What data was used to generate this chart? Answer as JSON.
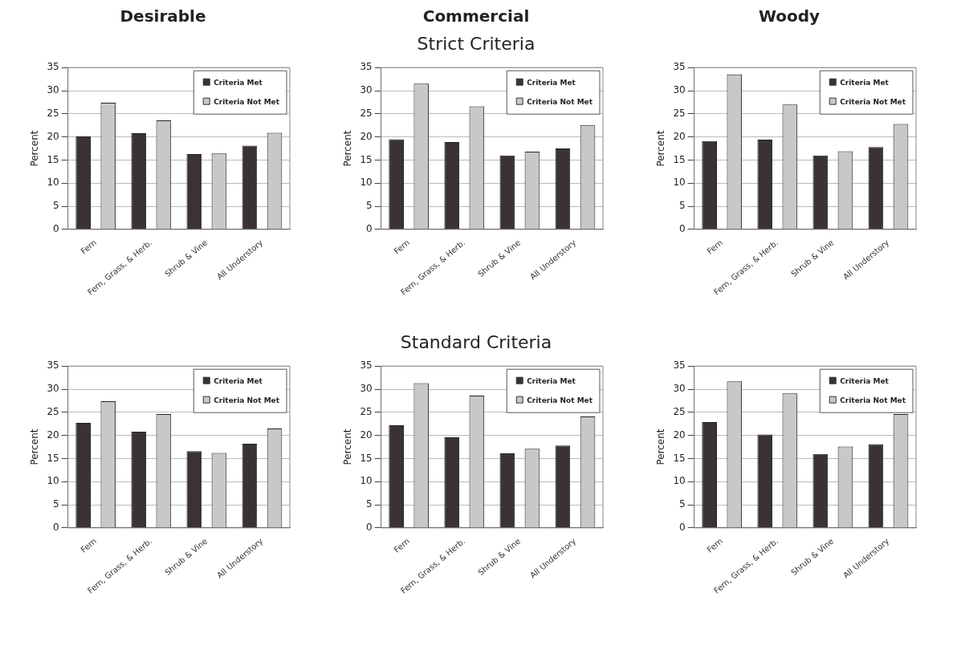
{
  "chart_data": [
    {
      "type": "bar",
      "title": "Desirable",
      "ylabel": "Percent",
      "categories": [
        "Fern",
        "Fern, Grass, & Herb.",
        "Shrub & Vine",
        "All Understory"
      ],
      "ylim": [
        0,
        35
      ],
      "yticks": [
        0,
        5,
        10,
        15,
        20,
        25,
        30,
        35
      ],
      "grid": "y",
      "legend": "top right",
      "series": [
        {
          "name": "Criteria Met",
          "color": "#3a3236",
          "values": [
            20.1,
            20.8,
            16.3,
            18.1
          ]
        },
        {
          "name": "Criteria Not Met",
          "color": "#c8c8c8",
          "values": [
            27.4,
            23.6,
            16.4,
            20.9
          ]
        }
      ]
    },
    {
      "type": "bar",
      "title": "Commercial",
      "subtitle": "Strict Criteria",
      "ylabel": "Percent",
      "categories": [
        "Fern",
        "Fern, Grass, & Herb.",
        "Shrub & Vine",
        "All Understory"
      ],
      "ylim": [
        0,
        35
      ],
      "yticks": [
        0,
        5,
        10,
        15,
        20,
        25,
        30,
        35
      ],
      "grid": "y",
      "legend": "top right",
      "series": [
        {
          "name": "Criteria Met",
          "color": "#3a3236",
          "values": [
            19.5,
            18.9,
            16.0,
            17.5
          ]
        },
        {
          "name": "Criteria Not Met",
          "color": "#c8c8c8",
          "values": [
            31.5,
            26.6,
            16.8,
            22.6
          ]
        }
      ]
    },
    {
      "type": "bar",
      "title": "Woody",
      "ylabel": "Percent",
      "categories": [
        "Fern",
        "Fern, Grass, & Herb.",
        "Shrub & Vine",
        "All Understory"
      ],
      "ylim": [
        0,
        35
      ],
      "yticks": [
        0,
        5,
        10,
        15,
        20,
        25,
        30,
        35
      ],
      "grid": "y",
      "legend": "top right",
      "series": [
        {
          "name": "Criteria Met",
          "color": "#3a3236",
          "values": [
            19.1,
            19.4,
            16.0,
            17.8
          ]
        },
        {
          "name": "Criteria Not Met",
          "color": "#c8c8c8",
          "values": [
            33.5,
            27.0,
            16.9,
            22.8
          ]
        }
      ]
    },
    {
      "type": "bar",
      "ylabel": "Percent",
      "categories": [
        "Fern",
        "Fern, Grass, & Herb.",
        "Shrub & Vine",
        "All Understory"
      ],
      "ylim": [
        0,
        35
      ],
      "yticks": [
        0,
        5,
        10,
        15,
        20,
        25,
        30,
        35
      ],
      "grid": "y",
      "legend": "top right",
      "series": [
        {
          "name": "Criteria Met",
          "color": "#3a3236",
          "values": [
            22.7,
            20.8,
            16.6,
            18.2
          ]
        },
        {
          "name": "Criteria Not Met",
          "color": "#c8c8c8",
          "values": [
            27.4,
            24.6,
            16.2,
            21.5
          ]
        }
      ]
    },
    {
      "type": "bar",
      "subtitle": "Standard Criteria",
      "ylabel": "Percent",
      "categories": [
        "Fern",
        "Fern, Grass, & Herb.",
        "Shrub & Vine",
        "All Understory"
      ],
      "ylim": [
        0,
        35
      ],
      "yticks": [
        0,
        5,
        10,
        15,
        20,
        25,
        30,
        35
      ],
      "grid": "y",
      "legend": "top right",
      "series": [
        {
          "name": "Criteria Met",
          "color": "#3a3236",
          "values": [
            22.2,
            19.6,
            16.1,
            17.8
          ]
        },
        {
          "name": "Criteria Not Met",
          "color": "#c8c8c8",
          "values": [
            31.3,
            28.6,
            17.1,
            24.1
          ]
        }
      ]
    },
    {
      "type": "bar",
      "ylabel": "Percent",
      "categories": [
        "Fern",
        "Fern, Grass, & Herb.",
        "Shrub & Vine",
        "All Understory"
      ],
      "ylim": [
        0,
        35
      ],
      "yticks": [
        0,
        5,
        10,
        15,
        20,
        25,
        30,
        35
      ],
      "grid": "y",
      "legend": "top right",
      "series": [
        {
          "name": "Criteria Met",
          "color": "#3a3236",
          "values": [
            22.9,
            20.2,
            16.0,
            18.1
          ]
        },
        {
          "name": "Criteria Not Met",
          "color": "#c8c8c8",
          "values": [
            31.7,
            29.1,
            17.6,
            24.6
          ]
        }
      ]
    }
  ]
}
